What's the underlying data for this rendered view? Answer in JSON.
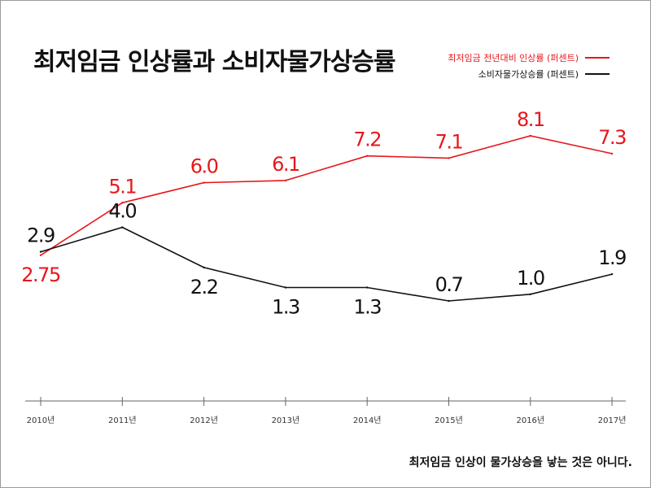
{
  "colors": {
    "min_wage": "#e8161b",
    "cpi": "#111111",
    "axis": "#666666"
  },
  "chart_data": {
    "type": "line",
    "title": "최저임금 인상률과 소비자물가상승률",
    "categories": [
      "2010년",
      "2011년",
      "2012년",
      "2013년",
      "2014년",
      "2015년",
      "2016년",
      "2017년"
    ],
    "series": [
      {
        "name": "최저임금 전년대비 인상률 (퍼센트)",
        "values": [
          2.75,
          5.1,
          6.0,
          6.1,
          7.2,
          7.1,
          8.1,
          7.3
        ],
        "labels": [
          "2.75",
          "5.1",
          "6.0",
          "6.1",
          "7.2",
          "7.1",
          "8.1",
          "7.3"
        ]
      },
      {
        "name": "소비자물가상승률 (퍼센트)",
        "values": [
          2.9,
          4.0,
          2.2,
          1.3,
          1.3,
          0.7,
          1.0,
          1.9
        ],
        "labels": [
          "2.9",
          "4.0",
          "2.2",
          "1.3",
          "1.3",
          "0.7",
          "1.0",
          "1.9"
        ]
      }
    ],
    "legend": "top-right",
    "grid": false
  },
  "caption": "최저임금 인상이 물가상승을 낳는 것은 아니다."
}
